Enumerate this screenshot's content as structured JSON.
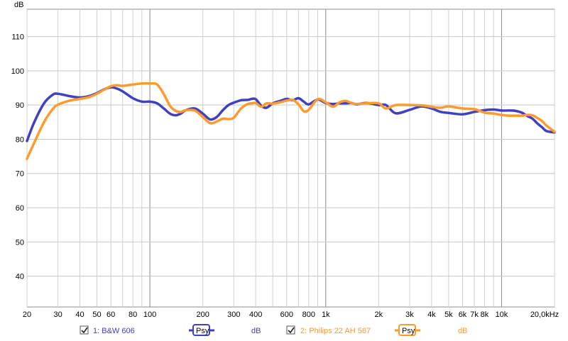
{
  "chart_data": {
    "type": "line",
    "title": "",
    "ylabel": "dB",
    "xlabel": "",
    "xscale": "log",
    "xlim": [
      20,
      20000
    ],
    "ylim": [
      31,
      118
    ],
    "grid": true,
    "x_ticks": [
      {
        "v": 20,
        "t": "20"
      },
      {
        "v": 30,
        "t": "30"
      },
      {
        "v": 40,
        "t": "40"
      },
      {
        "v": 50,
        "t": "50"
      },
      {
        "v": 60,
        "t": "60"
      },
      {
        "v": 80,
        "t": "80"
      },
      {
        "v": 100,
        "t": "100"
      },
      {
        "v": 200,
        "t": "200"
      },
      {
        "v": 300,
        "t": "300"
      },
      {
        "v": 400,
        "t": "400"
      },
      {
        "v": 600,
        "t": "600"
      },
      {
        "v": 800,
        "t": "800"
      },
      {
        "v": 1000,
        "t": "1k"
      },
      {
        "v": 2000,
        "t": "2k"
      },
      {
        "v": 3000,
        "t": "3k"
      },
      {
        "v": 4000,
        "t": "4k"
      },
      {
        "v": 5000,
        "t": "5k"
      },
      {
        "v": 6000,
        "t": "6k"
      },
      {
        "v": 7000,
        "t": "7k"
      },
      {
        "v": 8000,
        "t": "8k"
      },
      {
        "v": 10000,
        "t": "10k"
      },
      {
        "v": 20000,
        "t": "20,0kHz"
      }
    ],
    "y_ticks": [
      40,
      50,
      60,
      70,
      80,
      90,
      100,
      110
    ],
    "series": [
      {
        "name": "1: B&W 606",
        "color": "#4040c0",
        "x": [
          20,
          22,
          25,
          28,
          30,
          35,
          40,
          45,
          50,
          55,
          60,
          65,
          70,
          80,
          90,
          100,
          110,
          120,
          130,
          140,
          150,
          160,
          180,
          200,
          220,
          240,
          260,
          280,
          300,
          330,
          360,
          380,
          400,
          430,
          460,
          500,
          550,
          600,
          650,
          700,
          750,
          800,
          900,
          1000,
          1100,
          1200,
          1300,
          1400,
          1500,
          1700,
          2000,
          2200,
          2500,
          3000,
          3500,
          4000,
          4500,
          5000,
          6000,
          7000,
          8000,
          9000,
          10000,
          11000,
          12000,
          13000,
          14000,
          15000,
          16000,
          17000,
          18000,
          20000
        ],
        "y": [
          79.5,
          85,
          90.5,
          93,
          93.3,
          92.6,
          92.2,
          92.6,
          93.5,
          94.6,
          95.2,
          94.8,
          94,
          92,
          91,
          91,
          90.5,
          89,
          87.5,
          87,
          87.5,
          88.5,
          89,
          87.5,
          85.8,
          86.5,
          88.5,
          90,
          90.7,
          91.4,
          91.5,
          91.8,
          91.7,
          89.8,
          89.2,
          90.5,
          91.2,
          91.8,
          91.4,
          92,
          91,
          90.2,
          91.6,
          90.6,
          90.3,
          90.5,
          90.5,
          90.6,
          90.2,
          90.6,
          90,
          90,
          87.6,
          88.6,
          89.6,
          89,
          88,
          87.7,
          87.3,
          88,
          88.5,
          88.7,
          88.4,
          88.4,
          88.3,
          87.8,
          86.8,
          86,
          84.6,
          83.5,
          82.4,
          82
        ]
      },
      {
        "name": "2: Philips 22 AH 587",
        "color": "#ff9a2e",
        "x": [
          20,
          22,
          25,
          28,
          30,
          35,
          40,
          45,
          50,
          55,
          60,
          65,
          70,
          80,
          90,
          100,
          110,
          120,
          130,
          140,
          150,
          160,
          180,
          200,
          220,
          240,
          260,
          280,
          300,
          330,
          360,
          380,
          400,
          430,
          460,
          500,
          550,
          600,
          650,
          700,
          750,
          800,
          900,
          1000,
          1100,
          1200,
          1300,
          1400,
          1500,
          1700,
          2000,
          2200,
          2500,
          3000,
          3500,
          4000,
          4500,
          5000,
          6000,
          7000,
          8000,
          9000,
          10000,
          11000,
          12000,
          13000,
          14000,
          15000,
          16000,
          17000,
          18000,
          20000
        ],
        "y": [
          74.3,
          79,
          85,
          88.8,
          90.1,
          91.3,
          91.8,
          92.3,
          93.3,
          94.5,
          95.5,
          95.8,
          95.6,
          96,
          96.3,
          96.3,
          96,
          93.2,
          89.8,
          88.3,
          88,
          88.5,
          88.4,
          86.5,
          84.7,
          85.2,
          86,
          85.9,
          86.3,
          89,
          90.3,
          90.5,
          90.6,
          89.5,
          90.5,
          90.4,
          90.8,
          91.3,
          91.5,
          90.2,
          88.2,
          88.6,
          91.7,
          90.8,
          89.5,
          90.8,
          91.2,
          90.6,
          90.3,
          90.5,
          90.5,
          89,
          90,
          90,
          89.9,
          89.5,
          89.2,
          89.6,
          89,
          88.8,
          87.8,
          87.5,
          87.1,
          86.9,
          86.9,
          86.9,
          87.1,
          87,
          86.2,
          85.3,
          84,
          82.2
        ]
      }
    ]
  },
  "legend": {
    "item1": {
      "label": "1: B&W 606",
      "button": "Psy",
      "unit": "dB",
      "color": "#4040c0",
      "checked": true
    },
    "item2": {
      "label": "2: Philips 22 AH 587",
      "button": "Psy",
      "unit": "dB",
      "color": "#ff9a2e",
      "checked": true
    }
  }
}
